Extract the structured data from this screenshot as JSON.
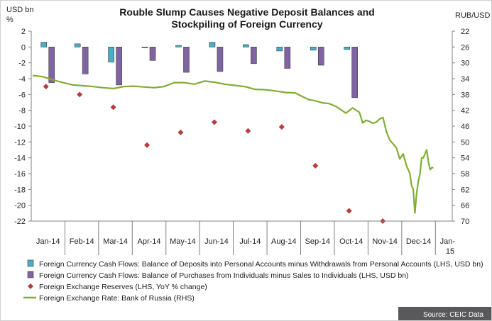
{
  "chart_data": {
    "type": "bar",
    "title_lines": [
      "Rouble Slump Causes Negative Deposit Balances and",
      "Stockpiling of Foreign Currency"
    ],
    "left_axis_label_lines": [
      "USD bn",
      "%"
    ],
    "right_axis_label": "RUB/USD",
    "left_ylim": [
      -22,
      2
    ],
    "right_ylim": [
      22,
      70
    ],
    "right_axis_inverted": true,
    "left_ticks": [
      "2",
      "0",
      "-2",
      "-4",
      "-6",
      "-8",
      "-10",
      "-12",
      "-14",
      "-16",
      "-18",
      "-20",
      "-22"
    ],
    "right_ticks": [
      "22",
      "26",
      "30",
      "34",
      "38",
      "42",
      "46",
      "50",
      "54",
      "58",
      "62",
      "66",
      "70"
    ],
    "categories": [
      "Jan-14",
      "Feb-14",
      "Mar-14",
      "Apr-14",
      "May-14",
      "Jun-14",
      "Jul-14",
      "Aug-14",
      "Sep-14",
      "Oct-14",
      "Nov-14",
      "Dec-14",
      "Jan-15"
    ],
    "grid": false,
    "legend_position": "bottom",
    "series": [
      {
        "name": "Foreign Currency Cash Flows: Balance of Deposits into Personal Accounts minus Withdrawals from Personal Accounts (LHS, USD bn)",
        "type": "bar",
        "axis": "left",
        "color": "#4bacc6",
        "values": [
          0.6,
          0.4,
          -1.9,
          -0.1,
          0.2,
          0.6,
          0.3,
          -0.5,
          -0.4,
          -0.3,
          null,
          null,
          null
        ]
      },
      {
        "name": "Foreign Currency Cash Flows: Balance of Purchases from Individuals minus Sales to Individuals (LHS, USD bn)",
        "type": "bar",
        "axis": "left",
        "color": "#8064a2",
        "values": [
          -4.5,
          -3.4,
          -4.8,
          -1.7,
          -3.2,
          -3.1,
          -2.1,
          -2.7,
          -2.3,
          -6.4,
          null,
          null,
          null
        ]
      },
      {
        "name": "Foreign Exchange Reserves (LHS, YoY % change)",
        "type": "scatter",
        "axis": "left",
        "color": "#b83c3c",
        "values": [
          -5.0,
          -6.0,
          -7.6,
          -12.4,
          -10.8,
          -9.5,
          -10.6,
          -10.1,
          -15.0,
          -20.7,
          -22.0,
          null,
          null
        ]
      },
      {
        "name": "Foreign Exchange Rate: Bank of Russia (RHS)",
        "type": "line",
        "axis": "right",
        "color": "#7fae34",
        "x": [
          0.0,
          0.3,
          0.6,
          0.9,
          1.2,
          1.5,
          1.8,
          2.1,
          2.4,
          2.7,
          3.0,
          3.3,
          3.6,
          3.9,
          4.2,
          4.5,
          4.8,
          5.1,
          5.4,
          5.7,
          6.0,
          6.3,
          6.6,
          6.9,
          7.2,
          7.5,
          7.8,
          8.0,
          8.2,
          8.4,
          8.6,
          8.8,
          9.0,
          9.3,
          9.5,
          9.7,
          9.8,
          9.9,
          10.0,
          10.1,
          10.2,
          10.3,
          10.4,
          10.5,
          10.6,
          10.7,
          10.8,
          10.9,
          11.0,
          11.1,
          11.2,
          11.25,
          11.3,
          11.35,
          11.4,
          11.45,
          11.5,
          11.55,
          11.6,
          11.7,
          11.75,
          11.8,
          11.85,
          11.9
        ],
        "values": [
          33.2,
          33.5,
          34.3,
          35.0,
          35.6,
          35.8,
          36.0,
          36.3,
          36.5,
          36.0,
          35.9,
          36.1,
          36.3,
          36.0,
          35.0,
          35.0,
          35.4,
          34.6,
          34.9,
          35.4,
          35.7,
          36.0,
          36.7,
          36.8,
          37.1,
          37.5,
          37.6,
          38.5,
          39.3,
          39.6,
          40.1,
          40.3,
          41.0,
          42.7,
          41.4,
          42.5,
          45.2,
          44.5,
          44.8,
          45.3,
          45.0,
          44.2,
          43.8,
          47.3,
          49.5,
          50.5,
          51.5,
          54.3,
          53.0,
          56.0,
          58.0,
          61.0,
          62.0,
          68.0,
          63.0,
          60.0,
          58.0,
          54.0,
          54.0,
          52.0,
          55.0,
          57.0,
          56.5,
          56.5
        ]
      }
    ]
  },
  "source_label": "Source: CEIC Data"
}
